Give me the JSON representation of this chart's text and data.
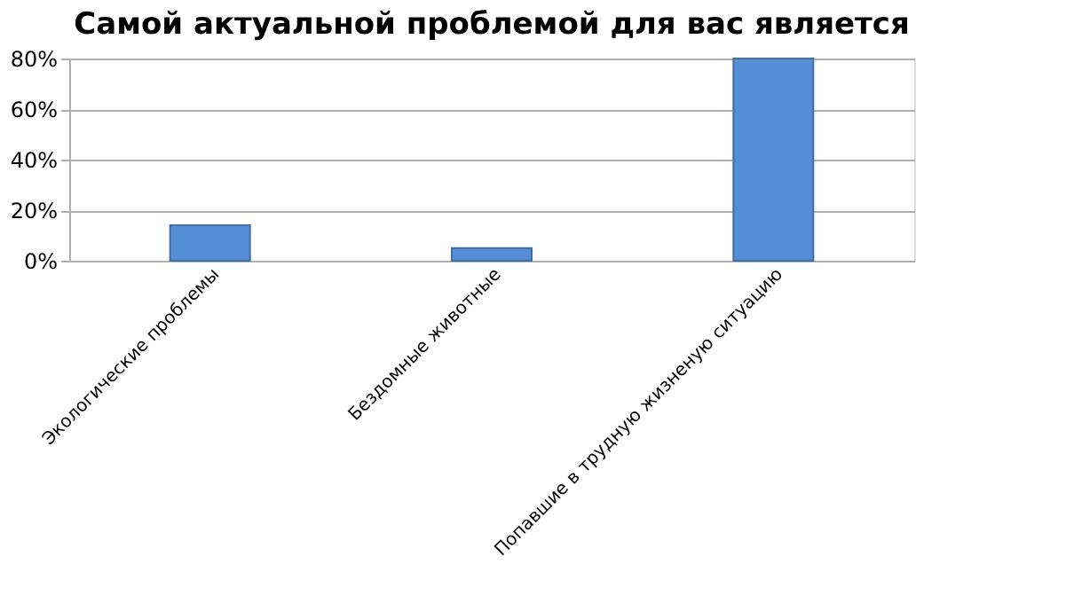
{
  "chart_data": {
    "type": "bar",
    "title": "Самой актуальной проблемой для вас является",
    "categories": [
      "Экологические проблемы",
      "Бездомные животные",
      "Попавшие в трудную жизненую ситуацию"
    ],
    "values": [
      14,
      5,
      80
    ],
    "color": "#558ed5",
    "ylim": [
      0,
      80
    ],
    "yticks": [
      {
        "value": 0,
        "label": "0%"
      },
      {
        "value": 20,
        "label": "20%"
      },
      {
        "value": 40,
        "label": "40%"
      },
      {
        "value": 60,
        "label": "60%"
      },
      {
        "value": 80,
        "label": "80%"
      }
    ],
    "grid": "y"
  }
}
